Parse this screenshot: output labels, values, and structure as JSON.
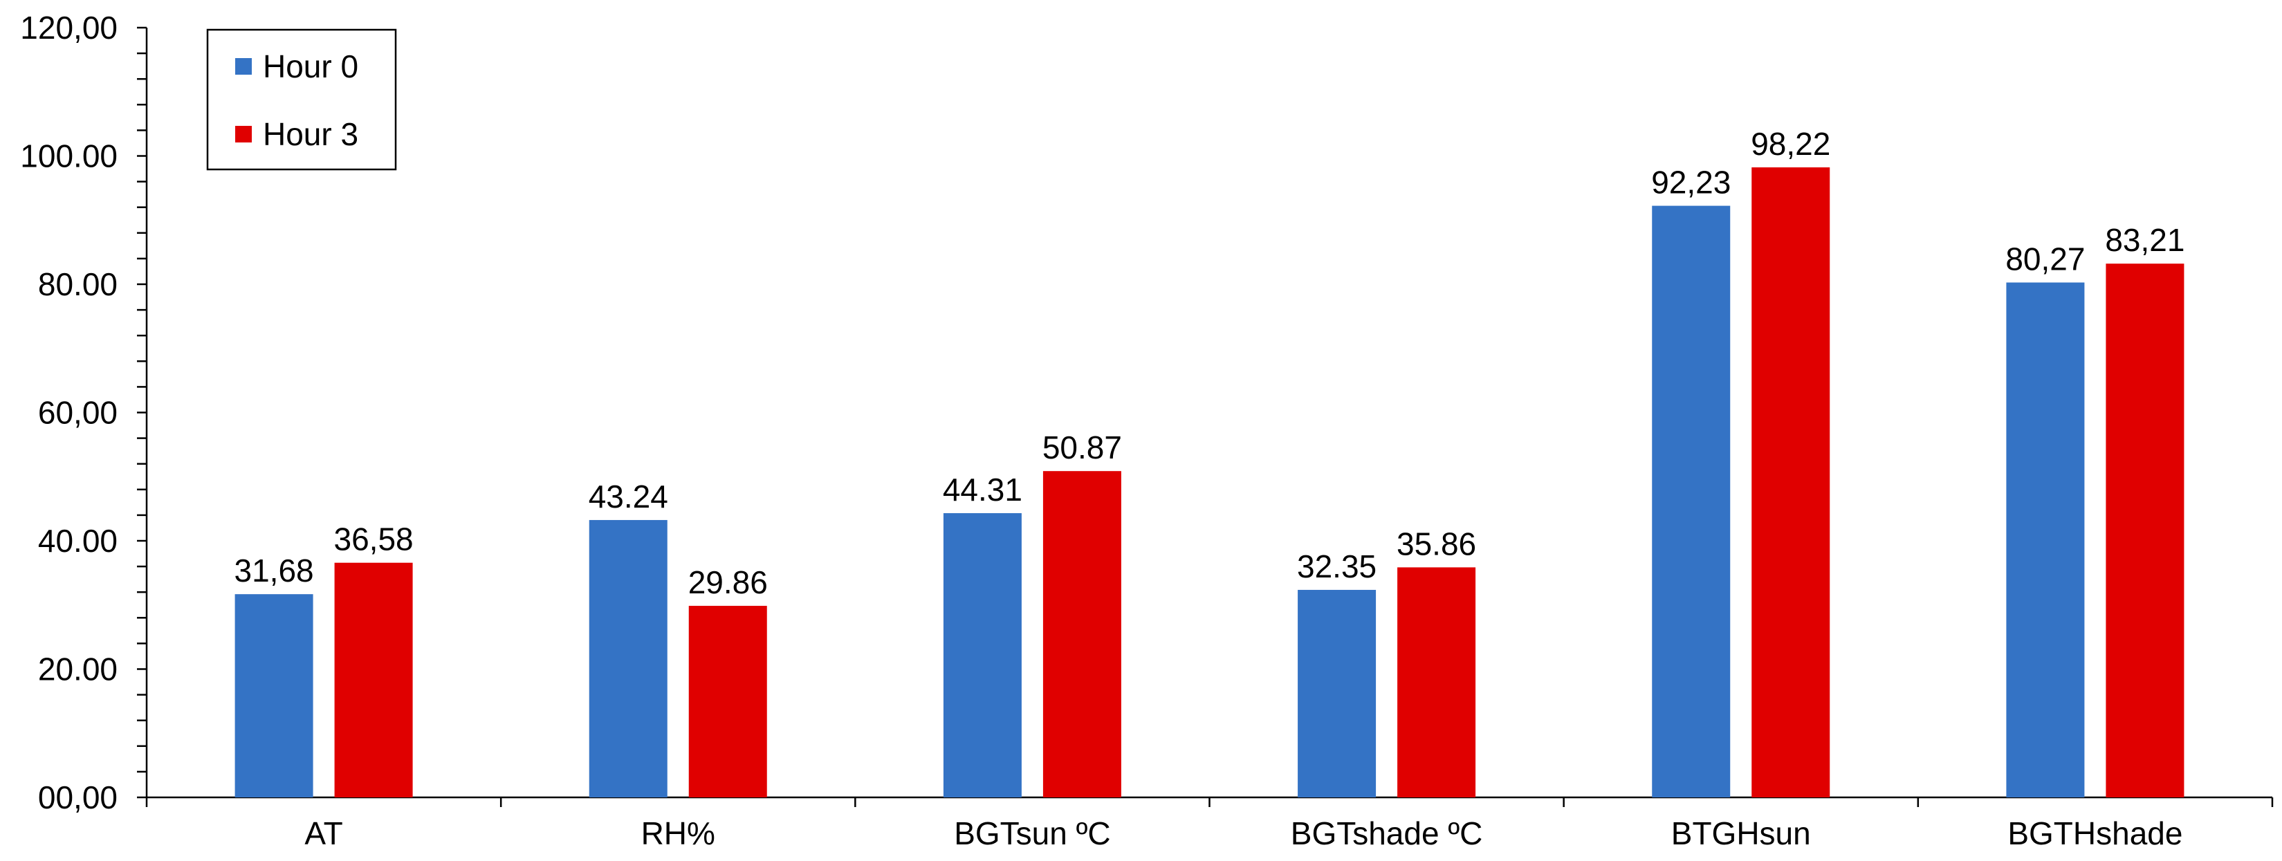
{
  "chart_data": {
    "type": "bar",
    "title": "",
    "xlabel": "",
    "ylabel": "",
    "ylim": [
      0,
      120
    ],
    "y_ticks": [
      "00,00",
      "20.00",
      "40.00",
      "60,00",
      "80.00",
      "100.00",
      "120,00"
    ],
    "y_tick_values": [
      0,
      20,
      40,
      60,
      80,
      100,
      120
    ],
    "y_minor_divisions": 5,
    "grid": false,
    "legend_position": "top-left",
    "categories": [
      "AT",
      "RH%",
      "BGTsun ºC",
      "BGTshade ºC",
      "BTGHsun",
      "BGTHshade"
    ],
    "series": [
      {
        "name": "Hour 0",
        "color": "#3473C5",
        "values": [
          31.68,
          43.24,
          44.31,
          32.35,
          92.23,
          80.27
        ],
        "labels": [
          "31,68",
          "43.24",
          "44.31",
          "32.35",
          "92,23",
          "80,27"
        ]
      },
      {
        "name": "Hour 3",
        "color": "#E00000",
        "values": [
          36.58,
          29.86,
          50.87,
          35.86,
          98.22,
          83.21
        ],
        "labels": [
          "36,58",
          "29.86",
          "50.87",
          "35.86",
          "98,22",
          "83,21"
        ]
      }
    ]
  }
}
